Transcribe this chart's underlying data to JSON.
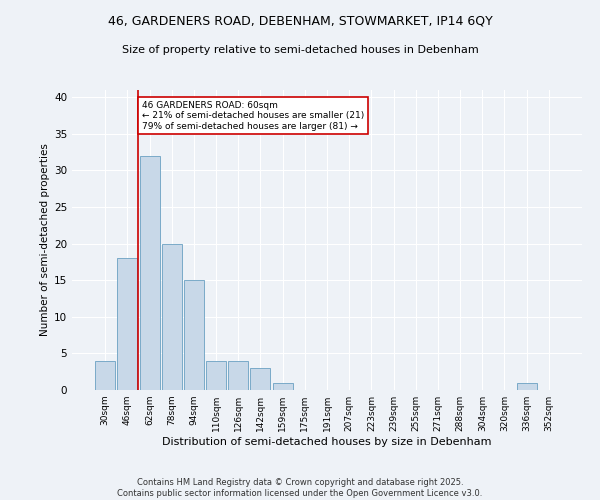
{
  "title1": "46, GARDENERS ROAD, DEBENHAM, STOWMARKET, IP14 6QY",
  "title2": "Size of property relative to semi-detached houses in Debenham",
  "xlabel": "Distribution of semi-detached houses by size in Debenham",
  "ylabel": "Number of semi-detached properties",
  "categories": [
    "30sqm",
    "46sqm",
    "62sqm",
    "78sqm",
    "94sqm",
    "110sqm",
    "126sqm",
    "142sqm",
    "159sqm",
    "175sqm",
    "191sqm",
    "207sqm",
    "223sqm",
    "239sqm",
    "255sqm",
    "271sqm",
    "288sqm",
    "304sqm",
    "320sqm",
    "336sqm",
    "352sqm"
  ],
  "values": [
    4,
    18,
    32,
    20,
    15,
    4,
    4,
    3,
    1,
    0,
    0,
    0,
    0,
    0,
    0,
    0,
    0,
    0,
    0,
    1,
    0
  ],
  "bar_color": "#c8d8e8",
  "bar_edge_color": "#7aaac8",
  "vline_x_index": 2,
  "vline_color": "#cc0000",
  "annotation_text": "46 GARDENERS ROAD: 60sqm\n← 21% of semi-detached houses are smaller (21)\n79% of semi-detached houses are larger (81) →",
  "annotation_box_color": "#ffffff",
  "annotation_edge_color": "#cc0000",
  "footer1": "Contains HM Land Registry data © Crown copyright and database right 2025.",
  "footer2": "Contains public sector information licensed under the Open Government Licence v3.0.",
  "ylim": [
    0,
    41
  ],
  "yticks": [
    0,
    5,
    10,
    15,
    20,
    25,
    30,
    35,
    40
  ],
  "bg_color": "#eef2f7",
  "grid_color": "#ffffff"
}
